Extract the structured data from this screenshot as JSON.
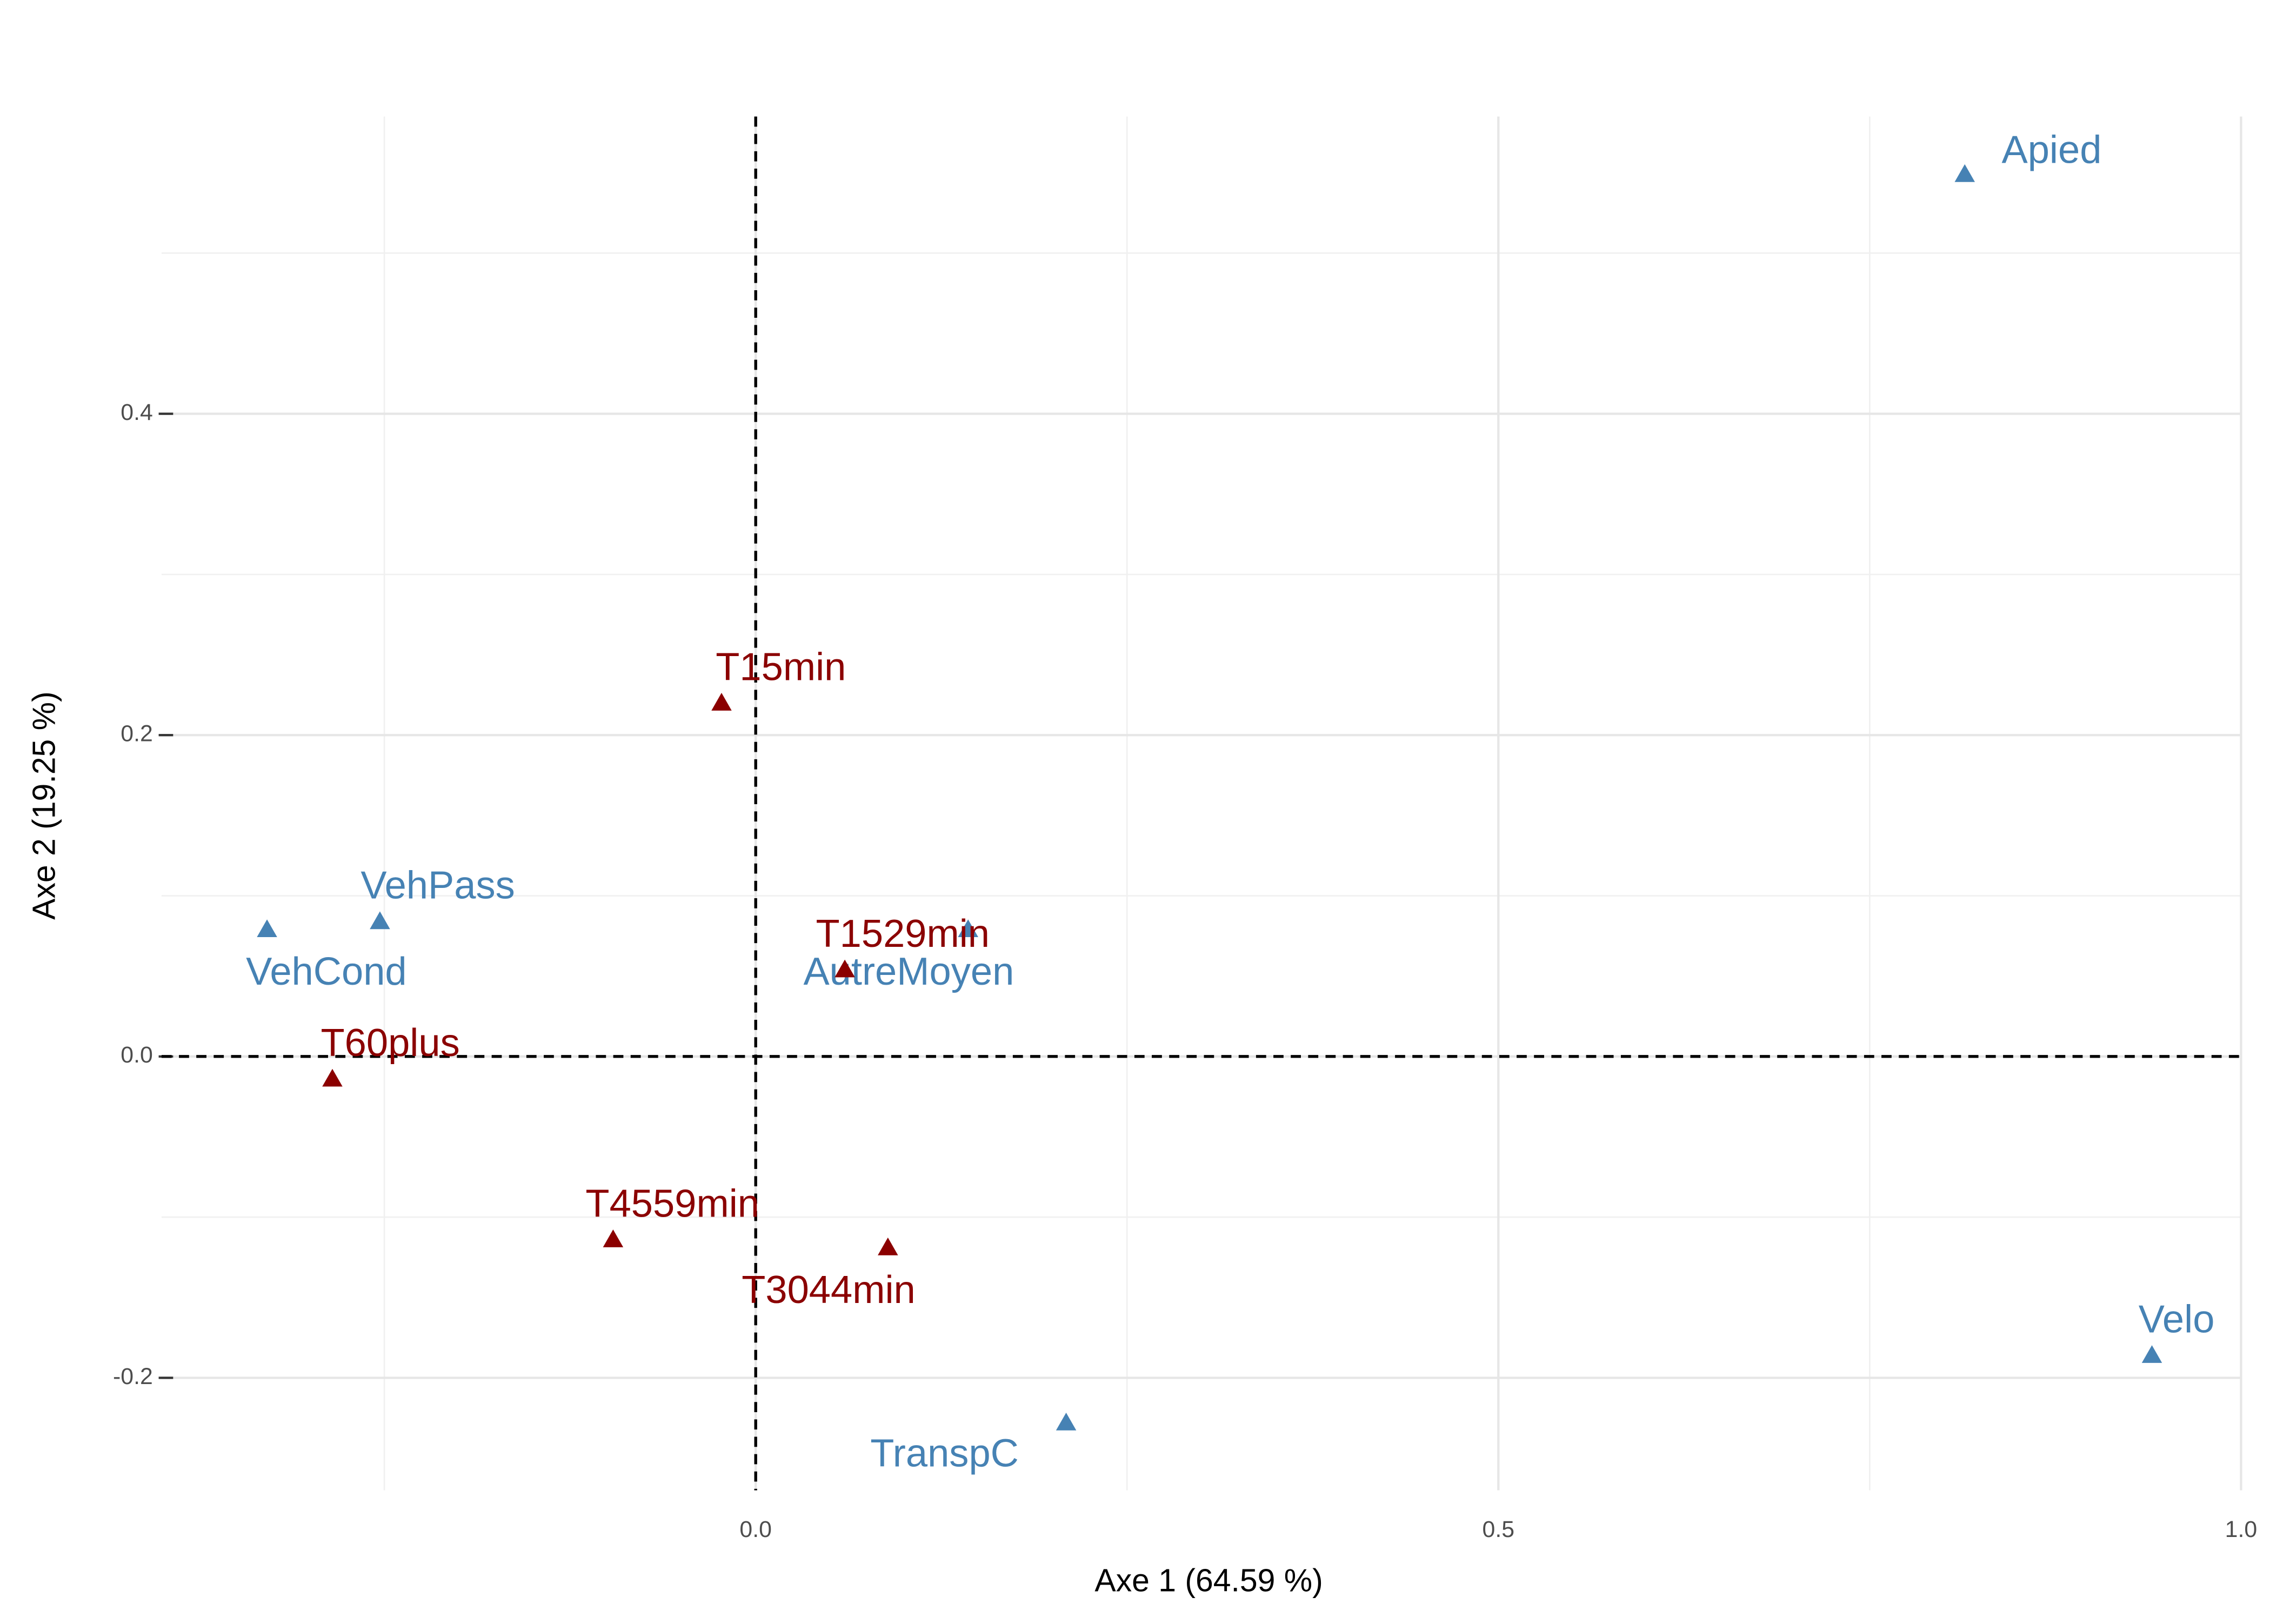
{
  "chart_data": {
    "type": "scatter",
    "x_label": "Axe 1 (64.59 %)",
    "y_label": "Axe 2 (19.25 %)",
    "xlim": [
      -0.4,
      1.0
    ],
    "ylim": [
      -0.27,
      0.585
    ],
    "xticks": [
      {
        "value": 0,
        "label": "0.0"
      },
      {
        "value": 0.5,
        "label": "0.5"
      },
      {
        "value": 1.0,
        "label": "1.0"
      }
    ],
    "yticks": [
      {
        "value": -0.2,
        "label": "-0.2"
      },
      {
        "value": 0,
        "label": "0.0"
      },
      {
        "value": 0.2,
        "label": "0.2"
      },
      {
        "value": 0.4,
        "label": "0.4"
      }
    ],
    "xminor": [
      -0.25,
      0.25,
      0.75
    ],
    "yminor": [
      -0.1,
      0.1,
      0.3,
      0.5
    ],
    "grid": true,
    "series": [
      {
        "color": "#4682b4",
        "labels": [
          "Apied",
          "Velo",
          "TranspC",
          "VehPass",
          "VehCond",
          "AutreMoyen"
        ],
        "x": [
          0.814,
          0.94,
          0.209,
          -0.253,
          -0.329,
          0.143
        ],
        "values": [
          0.549,
          -0.186,
          -0.228,
          0.084,
          0.079,
          0.079
        ]
      },
      {
        "color": "#8b0000",
        "labels": [
          "T15min",
          "T1529min",
          "T60plus",
          "T4559min",
          "T3044min"
        ],
        "x": [
          -0.023,
          0.06,
          -0.285,
          -0.096,
          0.089
        ],
        "values": [
          0.22,
          0.054,
          -0.014,
          -0.114,
          -0.119
        ]
      }
    ]
  }
}
